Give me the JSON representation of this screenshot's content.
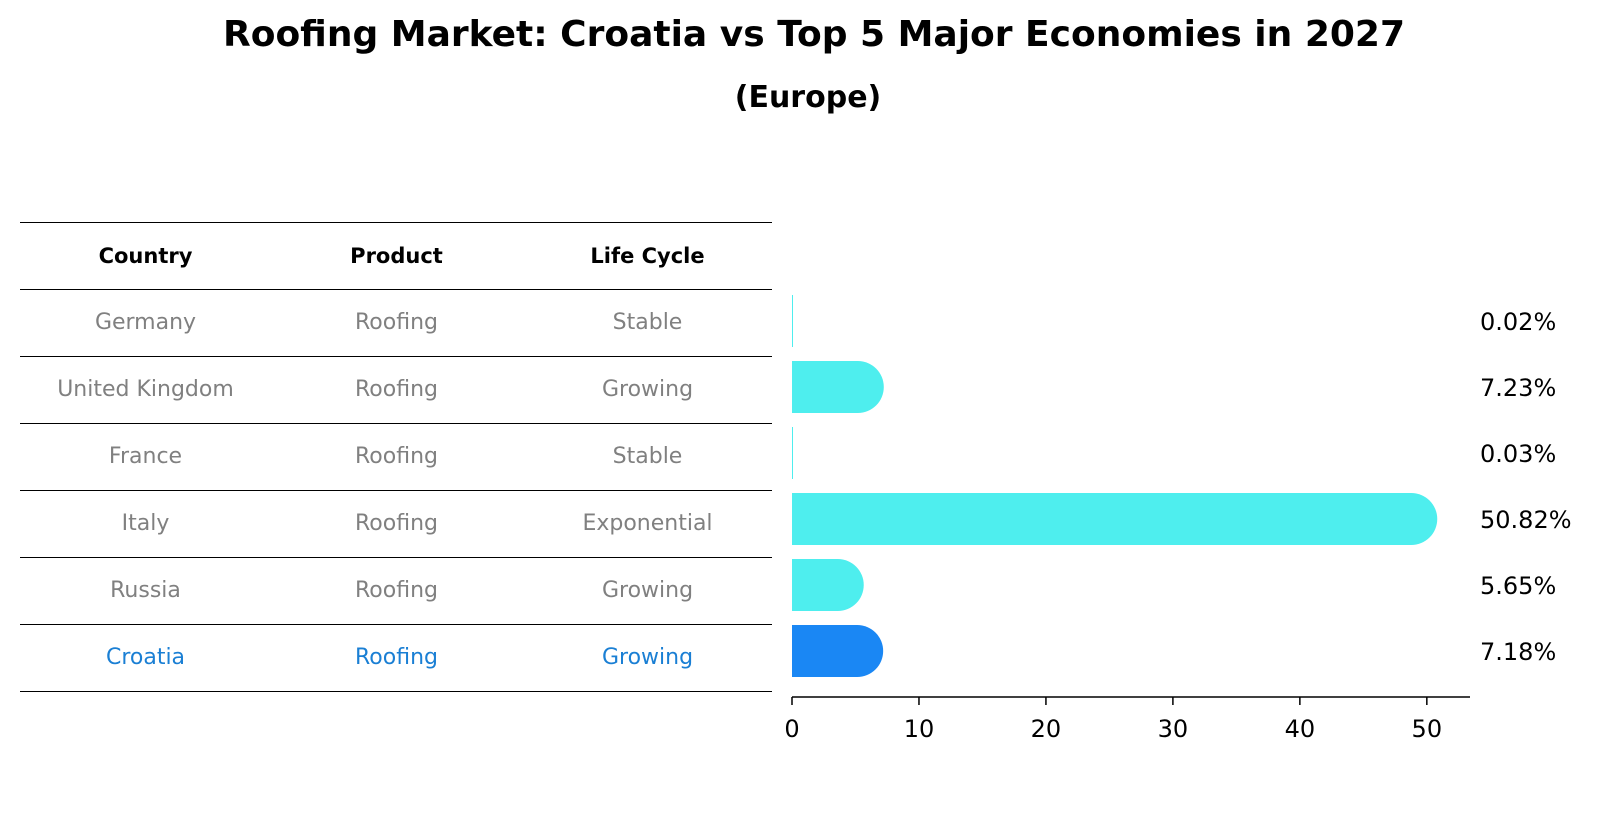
{
  "title": "Roofing Market: Croatia vs Top 5 Major Economies in 2027",
  "subtitle": "(Europe)",
  "table": {
    "headers": [
      "Country",
      "Product",
      "Life Cycle"
    ],
    "rows": [
      [
        "Germany",
        "Roofing",
        "Stable"
      ],
      [
        "United Kingdom",
        "Roofing",
        "Growing"
      ],
      [
        "France",
        "Roofing",
        "Stable"
      ],
      [
        "Italy",
        "Roofing",
        "Exponential"
      ],
      [
        "Russia",
        "Roofing",
        "Growing"
      ],
      [
        "Croatia",
        "Roofing",
        "Growing"
      ]
    ],
    "highlight_row": 5
  },
  "chart_data": {
    "type": "bar",
    "orientation": "horizontal",
    "categories": [
      "Germany",
      "United Kingdom",
      "France",
      "Italy",
      "Russia",
      "Croatia"
    ],
    "values": [
      0.02,
      7.23,
      0.03,
      50.82,
      5.65,
      7.18
    ],
    "value_labels": [
      "0.02%",
      "7.23%",
      "0.03%",
      "50.82%",
      "5.65%",
      "7.18%"
    ],
    "xlim": [
      0,
      53.4
    ],
    "xticks": [
      0,
      10,
      20,
      30,
      40,
      50
    ],
    "grid": false,
    "highlight_category": "Croatia",
    "colors": {
      "bar": "#4eeeee",
      "highlight": "#1a87f4",
      "table_text": "#808080",
      "highlight_text": "#1a7fd4"
    }
  }
}
